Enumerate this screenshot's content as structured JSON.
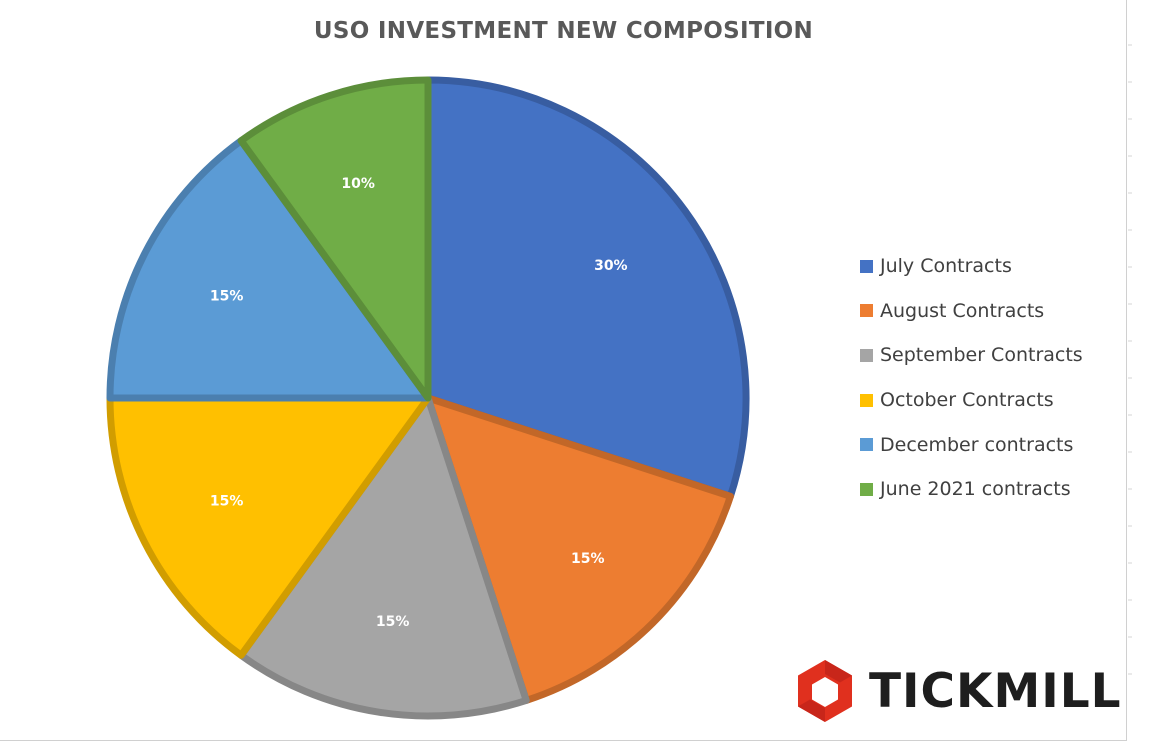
{
  "colors": {
    "july": "#4472C4",
    "august": "#ED7D31",
    "september": "#A5A5A5",
    "october": "#FFC000",
    "december": "#5B9BD5",
    "june2021": "#70AD47",
    "logo_red": "#E0301E",
    "logo_text": "#1e1e1e"
  },
  "logo": {
    "text": "TICKMILL"
  },
  "chart_data": {
    "type": "pie",
    "title": "USO INVESTMENT NEW COMPOSITION",
    "legend_position": "right",
    "slices": [
      {
        "name": "July Contracts",
        "value": 30,
        "label": "30%",
        "color_key": "july"
      },
      {
        "name": "August Contracts",
        "value": 15,
        "label": "15%",
        "color_key": "august"
      },
      {
        "name": "September Contracts",
        "value": 15,
        "label": "15%",
        "color_key": "september"
      },
      {
        "name": "October Contracts",
        "value": 15,
        "label": "15%",
        "color_key": "october"
      },
      {
        "name": "December contracts",
        "value": 15,
        "label": "15%",
        "color_key": "december"
      },
      {
        "name": "June 2021 contracts",
        "value": 10,
        "label": "10%",
        "color_key": "june2021"
      }
    ]
  }
}
